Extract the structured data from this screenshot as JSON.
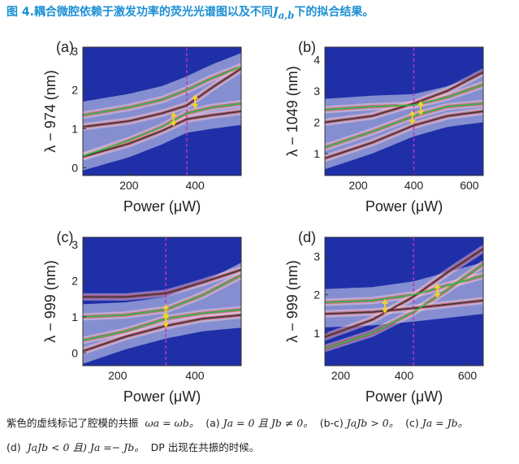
{
  "figure": {
    "title": "图 4.耦合微腔依赖于激发功率的荧光光谱图以及不同",
    "title_math": "J",
    "title_math_sub": "a,b",
    "title_suffix": "下的拟合结果。"
  },
  "caption": {
    "line1_a": "紫色的虚线标记了腔模的共振",
    "line1_math": "ωa = ωb。",
    "line1_b": "(a)",
    "line1_c": "Ja = 0  且  Jb ≠ 0。",
    "line1_d": "(b-c)",
    "line1_e": "JaJb > 0。",
    "line1_f": "(c)",
    "line1_g": "Ja = Jb。",
    "line2_a": "(d)",
    "line2_b": "JaJb < 0  且) Ja =− Jb。",
    "line2_c": "DP 出现在共振的时候。"
  },
  "colors": {
    "background": "#1f2fa8",
    "signal": "#e0303a",
    "fit_green": "#2fb84a",
    "fit_dark": "#3a3a3a",
    "resonance": "#c030c0",
    "marker": "#f2d22a",
    "title": "#1b8fd3"
  },
  "panels": [
    {
      "label": "(a)",
      "ylabel": "λ − 974 (nm)",
      "xlabel": "Power (μW)",
      "xlim": [
        60,
        540
      ],
      "ylim": [
        -0.2,
        3.1
      ],
      "xticks": [
        "200",
        "400"
      ],
      "xtick_values": [
        200,
        400
      ],
      "yticks": [
        "0",
        "1",
        "2",
        "3"
      ],
      "ytick_values": [
        0,
        1,
        2,
        3
      ],
      "resonance_x": 375,
      "green_upper": [
        [
          60,
          1.35
        ],
        [
          200,
          1.55
        ],
        [
          300,
          1.75
        ],
        [
          375,
          2.0
        ],
        [
          450,
          2.3
        ],
        [
          540,
          2.6
        ]
      ],
      "green_lower": [
        [
          60,
          0.3
        ],
        [
          200,
          0.7
        ],
        [
          300,
          1.05
        ],
        [
          375,
          1.4
        ],
        [
          450,
          1.55
        ],
        [
          540,
          1.65
        ]
      ],
      "dark_upper": [
        [
          60,
          1.05
        ],
        [
          200,
          1.2
        ],
        [
          300,
          1.4
        ],
        [
          375,
          1.6
        ],
        [
          450,
          2.05
        ],
        [
          540,
          2.55
        ]
      ],
      "dark_lower": [
        [
          60,
          0.28
        ],
        [
          200,
          0.62
        ],
        [
          300,
          0.95
        ],
        [
          375,
          1.25
        ],
        [
          450,
          1.35
        ],
        [
          540,
          1.45
        ]
      ],
      "markers": [
        [
          335,
          1.25
        ],
        [
          400,
          1.7
        ]
      ]
    },
    {
      "label": "(b)",
      "ylabel": "λ − 1049 (nm)",
      "xlabel": "Power (μW)",
      "xlim": [
        80,
        650
      ],
      "ylim": [
        0.3,
        4.4
      ],
      "xticks": [
        "200",
        "400",
        "600"
      ],
      "xtick_values": [
        200,
        400,
        600
      ],
      "yticks": [
        "1",
        "2",
        "3",
        "4"
      ],
      "ytick_values": [
        1,
        2,
        3,
        4
      ],
      "resonance_x": 400,
      "green_upper": [
        [
          80,
          2.4
        ],
        [
          250,
          2.5
        ],
        [
          400,
          2.55
        ],
        [
          520,
          2.8
        ],
        [
          650,
          3.2
        ]
      ],
      "green_lower": [
        [
          80,
          1.2
        ],
        [
          250,
          1.7
        ],
        [
          400,
          2.2
        ],
        [
          520,
          2.5
        ],
        [
          650,
          2.6
        ]
      ],
      "dark_upper": [
        [
          80,
          2.0
        ],
        [
          250,
          2.2
        ],
        [
          400,
          2.6
        ],
        [
          520,
          3.0
        ],
        [
          650,
          3.6
        ]
      ],
      "dark_lower": [
        [
          80,
          0.85
        ],
        [
          250,
          1.35
        ],
        [
          400,
          1.9
        ],
        [
          520,
          2.2
        ],
        [
          650,
          2.35
        ]
      ],
      "markers": [
        [
          395,
          2.15
        ],
        [
          425,
          2.45
        ]
      ]
    },
    {
      "label": "(c)",
      "ylabel": "λ − 999 (nm)",
      "xlabel": "Power (μW)",
      "xlim": [
        110,
        520
      ],
      "ylim": [
        -0.35,
        3.2
      ],
      "xticks": [
        "200",
        "400"
      ],
      "xtick_values": [
        200,
        400
      ],
      "yticks": [
        "0",
        "1",
        "2",
        "3"
      ],
      "ytick_values": [
        0,
        1,
        2,
        3
      ],
      "resonance_x": 325,
      "green_upper": [
        [
          110,
          1.0
        ],
        [
          220,
          1.05
        ],
        [
          325,
          1.2
        ],
        [
          420,
          1.6
        ],
        [
          520,
          2.15
        ]
      ],
      "green_lower": [
        [
          110,
          0.35
        ],
        [
          220,
          0.6
        ],
        [
          325,
          0.95
        ],
        [
          420,
          1.1
        ],
        [
          520,
          1.2
        ]
      ],
      "dark_upper": [
        [
          110,
          1.55
        ],
        [
          220,
          1.55
        ],
        [
          325,
          1.65
        ],
        [
          420,
          1.95
        ],
        [
          520,
          2.3
        ]
      ],
      "dark_lower": [
        [
          110,
          0.05
        ],
        [
          220,
          0.45
        ],
        [
          325,
          0.75
        ],
        [
          420,
          0.95
        ],
        [
          520,
          1.05
        ]
      ],
      "markers": [
        [
          325,
          1.15
        ],
        [
          325,
          0.9
        ]
      ]
    },
    {
      "label": "(d)",
      "ylabel": "λ − 999 (nm)",
      "xlabel": "Power (μW)",
      "xlim": [
        150,
        650
      ],
      "ylim": [
        0.15,
        3.5
      ],
      "xticks": [
        "200",
        "400",
        "600"
      ],
      "xtick_values": [
        200,
        400,
        600
      ],
      "yticks": [
        "1",
        "2",
        "3"
      ],
      "ytick_values": [
        1,
        2,
        3
      ],
      "resonance_x": 430,
      "green_upper": [
        [
          150,
          1.8
        ],
        [
          300,
          1.85
        ],
        [
          430,
          2.0
        ],
        [
          540,
          2.25
        ],
        [
          650,
          2.5
        ]
      ],
      "green_lower": [
        [
          150,
          0.6
        ],
        [
          300,
          1.0
        ],
        [
          430,
          1.55
        ],
        [
          540,
          2.15
        ],
        [
          650,
          2.8
        ]
      ],
      "dark_upper": [
        [
          150,
          0.9
        ],
        [
          300,
          1.35
        ],
        [
          430,
          1.95
        ],
        [
          540,
          2.6
        ],
        [
          650,
          3.2
        ]
      ],
      "dark_lower": [
        [
          150,
          1.5
        ],
        [
          300,
          1.55
        ],
        [
          430,
          1.65
        ],
        [
          540,
          1.75
        ],
        [
          650,
          1.85
        ]
      ],
      "markers": [
        [
          340,
          1.7
        ],
        [
          505,
          2.1
        ]
      ]
    }
  ]
}
